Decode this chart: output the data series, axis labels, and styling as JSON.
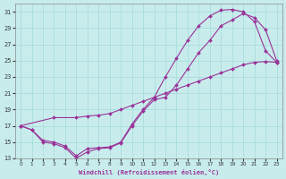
{
  "xlabel": "Windchill (Refroidissement éolien,°C)",
  "background_color": "#c8ecec",
  "line_color": "#993399",
  "grid_color": "#aadddd",
  "xlim": [
    -0.5,
    23.5
  ],
  "ylim": [
    13,
    32
  ],
  "xticks": [
    0,
    1,
    2,
    3,
    4,
    5,
    6,
    7,
    8,
    9,
    10,
    11,
    12,
    13,
    14,
    15,
    16,
    17,
    18,
    19,
    20,
    21,
    22,
    23
  ],
  "yticks": [
    13,
    15,
    17,
    19,
    21,
    23,
    25,
    27,
    29,
    31
  ],
  "curve_upper_x": [
    0,
    1,
    2,
    3,
    4,
    5,
    6,
    7,
    8,
    9,
    10,
    11,
    12,
    13,
    14,
    15,
    16,
    17,
    18,
    19,
    20,
    21,
    22,
    23
  ],
  "curve_upper_y": [
    17,
    16.5,
    15.2,
    15.0,
    14.5,
    13.3,
    14.2,
    14.3,
    14.4,
    15.0,
    17.2,
    19.0,
    20.5,
    23.0,
    25.3,
    27.5,
    29.3,
    30.5,
    31.2,
    31.3,
    31.0,
    29.8,
    26.2,
    24.8
  ],
  "curve_lower_x": [
    0,
    1,
    2,
    3,
    4,
    5,
    6,
    7,
    8,
    9,
    10,
    11,
    12,
    13,
    14,
    15,
    16,
    17,
    18,
    19,
    20,
    21,
    22,
    23
  ],
  "curve_lower_y": [
    17,
    16.5,
    15.0,
    14.8,
    14.3,
    13.0,
    13.8,
    14.2,
    14.3,
    14.9,
    17.0,
    18.8,
    20.2,
    20.5,
    22.0,
    24.0,
    26.0,
    27.5,
    29.3,
    30.0,
    30.8,
    30.3,
    28.8,
    25.0
  ],
  "curve_diag_x": [
    0,
    3,
    5,
    6,
    7,
    8,
    9,
    10,
    11,
    12,
    13,
    14,
    15,
    16,
    17,
    18,
    19,
    20,
    21,
    22,
    23
  ],
  "curve_diag_y": [
    17,
    18.0,
    18.0,
    18.2,
    18.3,
    18.5,
    19.0,
    19.5,
    20.0,
    20.5,
    21.0,
    21.5,
    22.0,
    22.5,
    23.0,
    23.5,
    24.0,
    24.5,
    24.8,
    24.9,
    24.8
  ]
}
